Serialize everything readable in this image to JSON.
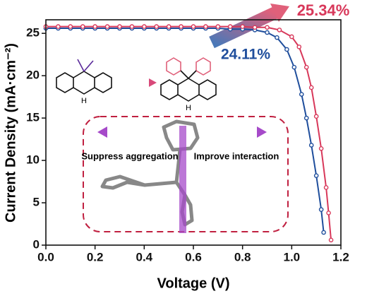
{
  "chart_data": {
    "type": "line",
    "xlabel": "Voltage (V)",
    "ylabel": "Current Density (mA·cm⁻²)",
    "xlim": [
      0,
      1.2
    ],
    "ylim": [
      0,
      26.6
    ],
    "xticks": [
      {
        "value": 0,
        "label": "0.0"
      },
      0.2,
      0.4,
      0.6,
      0.8,
      {
        "value": 1,
        "label": "1.0"
      },
      1.2
    ],
    "yticks": [
      0,
      5,
      10,
      15,
      20,
      25
    ],
    "series": [
      {
        "name": "24.11%",
        "color": "#1f4e9c",
        "x": [
          0,
          0.05,
          0.1,
          0.15,
          0.2,
          0.25,
          0.3,
          0.35,
          0.4,
          0.45,
          0.5,
          0.55,
          0.6,
          0.65,
          0.7,
          0.75,
          0.8,
          0.85,
          0.9,
          0.94,
          0.98,
          1.01,
          1.04,
          1.06,
          1.08,
          1.1,
          1.12,
          1.13
        ],
        "values": [
          25.6,
          25.6,
          25.6,
          25.6,
          25.6,
          25.6,
          25.6,
          25.6,
          25.6,
          25.6,
          25.6,
          25.6,
          25.6,
          25.6,
          25.6,
          25.5,
          25.5,
          25.4,
          25.1,
          24.5,
          23.1,
          21.0,
          17.8,
          15.0,
          11.8,
          8.2,
          4.2,
          1.5
        ]
      },
      {
        "name": "25.34%",
        "color": "#d8385a",
        "x": [
          0,
          0.05,
          0.1,
          0.15,
          0.2,
          0.25,
          0.3,
          0.35,
          0.4,
          0.45,
          0.5,
          0.55,
          0.6,
          0.65,
          0.7,
          0.75,
          0.8,
          0.85,
          0.9,
          0.95,
          1.0,
          1.03,
          1.06,
          1.08,
          1.1,
          1.12,
          1.14,
          1.15,
          1.16
        ],
        "values": [
          25.8,
          25.8,
          25.8,
          25.8,
          25.8,
          25.8,
          25.8,
          25.8,
          25.8,
          25.8,
          25.8,
          25.8,
          25.8,
          25.8,
          25.8,
          25.8,
          25.8,
          25.7,
          25.7,
          25.4,
          24.6,
          23.4,
          21.0,
          18.6,
          15.2,
          11.4,
          6.8,
          3.8,
          0.6
        ]
      }
    ],
    "annotations": [
      "Suppress aggregation",
      "Improve interaction"
    ],
    "molecule_labels": [
      "H",
      "H"
    ]
  }
}
